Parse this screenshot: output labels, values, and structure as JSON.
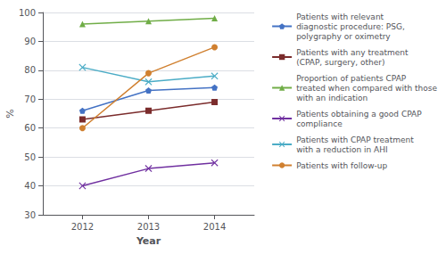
{
  "chart_data": {
    "type": "line",
    "x": [
      2012,
      2013,
      2014
    ],
    "series": [
      {
        "name": "Patients with relevant\ndiagnostic procedure: PSG,\npolygraphy or oximetry",
        "values": [
          66,
          73,
          74
        ],
        "color": "#4472C4",
        "marker": "pentagon"
      },
      {
        "name": "Patients with any treatment\n(CPAP, surgery, other)",
        "values": [
          63,
          66,
          69
        ],
        "color": "#7B2C2C",
        "marker": "square"
      },
      {
        "name": "Proportion of patients CPAP\ntreated when compared with those\nwith an indication",
        "values": [
          96,
          97,
          98
        ],
        "color": "#70AD47",
        "marker": "triangle"
      },
      {
        "name": "Patients obtaining a good CPAP\ncompliance",
        "values": [
          40,
          46,
          48
        ],
        "color": "#7030A0",
        "marker": "x"
      },
      {
        "name": "Patients with CPAP treatment\nwith a reduction in AHI",
        "values": [
          81,
          76,
          78
        ],
        "color": "#4BACC6",
        "marker": "x"
      },
      {
        "name": "Patients with follow-up",
        "values": [
          60,
          79,
          88
        ],
        "color": "#D08030",
        "marker": "circle"
      }
    ],
    "xlabel": "Year",
    "ylabel": "%",
    "xlim": [
      2011.4,
      2014.6
    ],
    "xticks": [
      2012,
      2013,
      2014
    ],
    "ylim": [
      30,
      100
    ],
    "yticks": [
      30,
      40,
      50,
      60,
      70,
      80,
      90,
      100
    ],
    "grid": true,
    "legend": "right"
  }
}
